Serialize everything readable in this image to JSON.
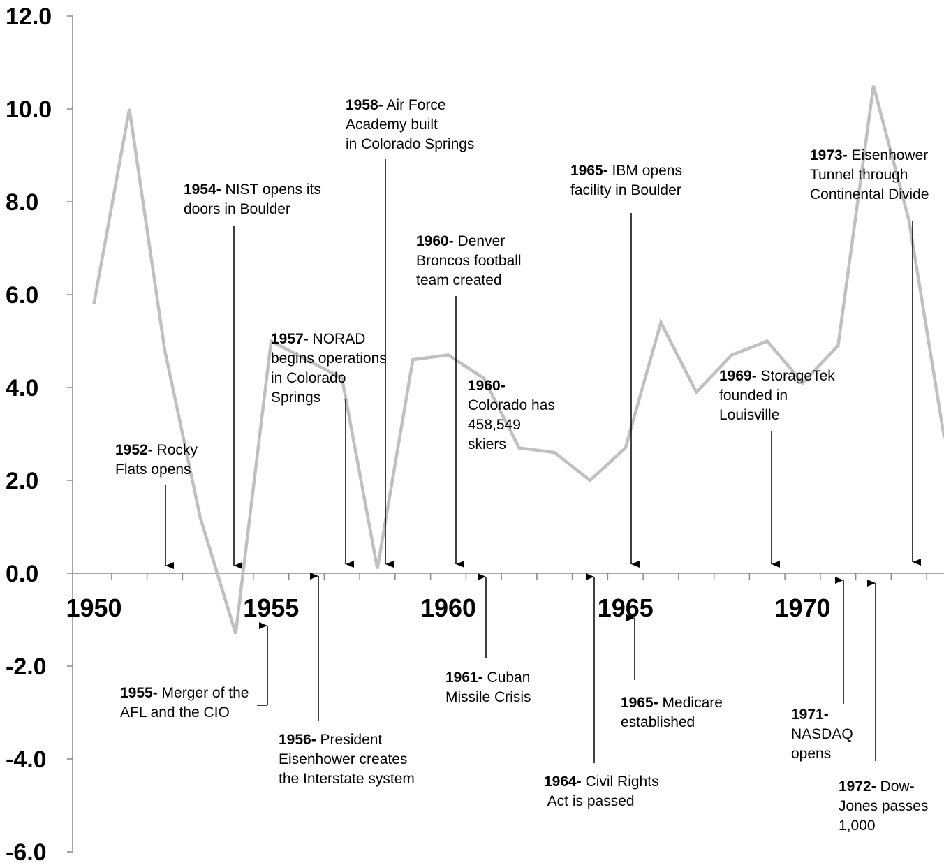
{
  "chart_data": {
    "type": "line",
    "title": "",
    "xlabel": "",
    "ylabel": "",
    "xlim": [
      1949.5,
      1974.4
    ],
    "ylim": [
      -6.0,
      12.0
    ],
    "y_ticks": [
      "12.0",
      "10.0",
      "8.0",
      "6.0",
      "4.0",
      "2.0",
      "0.0",
      "-2.0",
      "-4.0",
      "-6.0"
    ],
    "x_tick_labels": [
      {
        "year": 1950,
        "label": "1950"
      },
      {
        "year": 1955,
        "label": "1955"
      },
      {
        "year": 1960,
        "label": "1960"
      },
      {
        "year": 1965,
        "label": "1965"
      },
      {
        "year": 1970,
        "label": "1970"
      }
    ],
    "line_color": "#c0c0c0",
    "grid": false,
    "series": [
      {
        "x": [
          1950,
          1951,
          1952,
          1953,
          1954,
          1955,
          1956,
          1957,
          1958,
          1959,
          1960,
          1961,
          1962,
          1963,
          1964,
          1965,
          1966,
          1967,
          1968,
          1969,
          1970,
          1971,
          1972,
          1973,
          1974
        ],
        "values": [
          5.8,
          10.0,
          4.8,
          1.2,
          -1.3,
          5.0,
          4.6,
          4.2,
          0.1,
          4.6,
          4.7,
          4.2,
          2.7,
          2.6,
          2.0,
          2.7,
          5.4,
          3.9,
          4.7,
          5.0,
          4.1,
          4.9,
          10.5,
          7.6,
          2.9
        ]
      }
    ],
    "annotations": [
      {
        "year_label": "1952-",
        "lines": [
          " Rocky",
          "Flats opens"
        ],
        "year": 1952,
        "direction": "down"
      },
      {
        "year_label": "1954-",
        "lines": [
          " NIST opens its",
          "doors in Boulder"
        ],
        "year": 1954,
        "direction": "down"
      },
      {
        "year_label": "1957-",
        "lines": [
          " NORAD",
          "begins operations",
          "in Colorado",
          "Springs"
        ],
        "year": 1957,
        "direction": "down"
      },
      {
        "year_label": "1958-",
        "lines": [
          " Air Force",
          "Academy built",
          "in Colorado Springs"
        ],
        "year": 1958,
        "direction": "down"
      },
      {
        "year_label": "1960-",
        "lines": [
          " Denver",
          "Broncos football",
          "team created"
        ],
        "year": 1960,
        "direction": "down"
      },
      {
        "year_label": "1960-",
        "lines": [
          "",
          "Colorado has",
          "458,549",
          "skiers"
        ],
        "year": 1960,
        "direction": "none"
      },
      {
        "year_label": "1965-",
        "lines": [
          " IBM opens",
          "facility in  Boulder"
        ],
        "year": 1965,
        "direction": "down"
      },
      {
        "year_label": "1969-",
        "lines": [
          " StorageTek",
          "founded in",
          "Louisville"
        ],
        "year": 1969,
        "direction": "down"
      },
      {
        "year_label": "1973-",
        "lines": [
          " Eisenhower",
          "Tunnel through",
          "Continental Divide"
        ],
        "year": 1973,
        "direction": "down"
      },
      {
        "year_label": "1955-",
        "lines": [
          " Merger of the",
          "AFL and the CIO"
        ],
        "year": 1955,
        "direction": "up"
      },
      {
        "year_label": "1956-",
        "lines": [
          " President",
          "Eisenhower creates",
          "the Interstate system"
        ],
        "year": 1956,
        "direction": "up"
      },
      {
        "year_label": "1961-",
        "lines": [
          " Cuban",
          "Missile Crisis"
        ],
        "year": 1961,
        "direction": "up"
      },
      {
        "year_label": "1964-",
        "lines": [
          " Civil Rights",
          " Act is passed"
        ],
        "year": 1964,
        "direction": "up"
      },
      {
        "year_label": "1965-",
        "lines": [
          " Medicare",
          "established"
        ],
        "year": 1965,
        "direction": "up"
      },
      {
        "year_label": "1971-",
        "lines": [
          "",
          "NASDAQ",
          "opens"
        ],
        "year": 1971,
        "direction": "up"
      },
      {
        "year_label": "1972-",
        "lines": [
          " Dow-",
          "Jones passes",
          "1,000"
        ],
        "year": 1972,
        "direction": "up"
      }
    ]
  }
}
